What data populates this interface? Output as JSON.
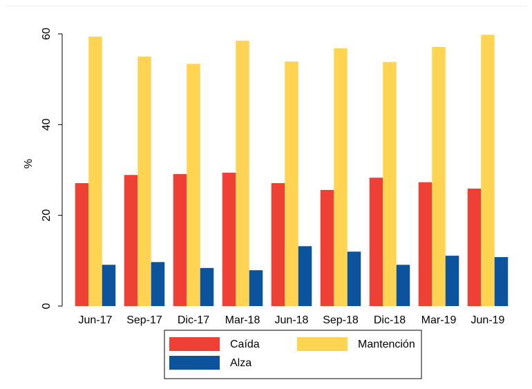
{
  "chart_data": {
    "type": "bar",
    "ylabel": "%",
    "categories": [
      "Jun-17",
      "Sep-17",
      "Dic-17",
      "Mar-18",
      "Jun-18",
      "Sep-18",
      "Dic-18",
      "Mar-19",
      "Jun-19"
    ],
    "series": [
      {
        "name": "Caída",
        "color": "#ee4035",
        "values": [
          27.1,
          28.9,
          29.1,
          29.4,
          27.1,
          25.6,
          28.3,
          27.3,
          25.9
        ]
      },
      {
        "name": "Mantención",
        "color": "#fed452",
        "values": [
          59.4,
          55.0,
          53.4,
          58.5,
          53.9,
          56.8,
          53.8,
          57.1,
          59.8
        ]
      },
      {
        "name": "Alza",
        "color": "#0b539c",
        "values": [
          9.1,
          9.7,
          8.4,
          7.9,
          13.2,
          12.0,
          9.1,
          11.1,
          10.8
        ]
      }
    ],
    "ylim": [
      0,
      60
    ],
    "yticks": [
      0,
      20,
      40,
      60
    ],
    "grid": false,
    "legend": "bottom"
  }
}
